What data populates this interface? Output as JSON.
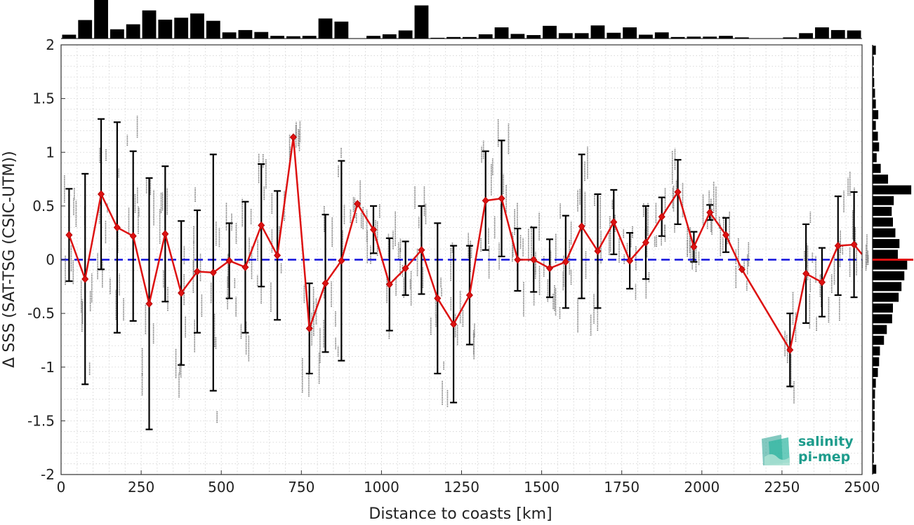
{
  "chart_data": {
    "type": "line",
    "xlabel": "Distance to coasts [km]",
    "ylabel": "Δ SSS (SAT-TSG (CSIC-UTM))",
    "xlim": [
      0,
      2500
    ],
    "ylim": [
      -2,
      2
    ],
    "xticks": [
      0,
      250,
      500,
      750,
      1000,
      1250,
      1500,
      1750,
      2000,
      2250,
      2500
    ],
    "yticks": [
      -2,
      -1.5,
      -1,
      -0.5,
      0,
      0.5,
      1,
      1.5,
      2
    ],
    "grid": true,
    "zero_line": {
      "y": 0,
      "style": "dashed",
      "color": "#1010dd"
    },
    "colors": {
      "mean_line": "#dd1111",
      "error_bars": "#000000",
      "scatter": "#777777",
      "histogram": "#000000"
    },
    "series": [
      {
        "x": [
          25,
          75,
          125,
          175,
          225,
          275,
          325,
          375,
          425,
          475,
          525,
          575,
          625,
          675,
          725,
          775,
          825,
          875,
          925,
          975,
          1025,
          1075,
          1125,
          1175,
          1225,
          1275,
          1325,
          1375,
          1425,
          1475,
          1525,
          1575,
          1625,
          1675,
          1725,
          1775,
          1825,
          1875,
          1925,
          1975,
          2025,
          2075,
          2125,
          2275,
          2325,
          2375,
          2425,
          2475,
          2500
        ],
        "mean": [
          0.23,
          -0.18,
          0.61,
          0.3,
          0.22,
          -0.41,
          0.24,
          -0.31,
          -0.11,
          -0.12,
          -0.01,
          -0.07,
          0.32,
          0.04,
          1.14,
          -0.64,
          -0.22,
          -0.01,
          0.52,
          0.28,
          -0.23,
          -0.08,
          0.09,
          -0.36,
          -0.6,
          -0.33,
          0.55,
          0.57,
          0.0,
          0.0,
          -0.08,
          -0.02,
          0.31,
          0.08,
          0.35,
          -0.01,
          0.16,
          0.4,
          0.63,
          0.12,
          0.44,
          0.23,
          -0.09,
          -0.84,
          -0.13,
          -0.21,
          0.13,
          0.14,
          0.05
        ],
        "error": [
          0.43,
          0.98,
          0.7,
          0.98,
          0.79,
          1.17,
          0.63,
          0.67,
          0.57,
          1.1,
          0.35,
          0.61,
          0.57,
          0.6,
          0.0,
          0.42,
          0.64,
          0.93,
          0.0,
          0.22,
          0.43,
          0.25,
          0.41,
          0.7,
          0.73,
          0.46,
          0.46,
          0.54,
          0.29,
          0.3,
          0.27,
          0.43,
          0.67,
          0.53,
          0.3,
          0.26,
          0.34,
          0.18,
          0.3,
          0.14,
          0.07,
          0.16,
          0.0,
          0.34,
          0.46,
          0.32,
          0.46,
          0.49,
          0.0
        ]
      }
    ],
    "top_histogram": {
      "bin_width": 50,
      "bin_centers": [
        25,
        75,
        125,
        175,
        225,
        275,
        325,
        375,
        425,
        475,
        525,
        575,
        625,
        675,
        725,
        775,
        825,
        875,
        925,
        975,
        1025,
        1075,
        1125,
        1175,
        1225,
        1275,
        1325,
        1375,
        1425,
        1475,
        1525,
        1575,
        1625,
        1675,
        1725,
        1775,
        1825,
        1875,
        1925,
        1975,
        2025,
        2075,
        2125,
        2175,
        2225,
        2275,
        2325,
        2375,
        2425,
        2475
      ],
      "values": [
        0.1,
        0.48,
        1.0,
        0.24,
        0.37,
        0.73,
        0.49,
        0.54,
        0.65,
        0.46,
        0.16,
        0.22,
        0.17,
        0.07,
        0.06,
        0.07,
        0.52,
        0.44,
        0.0,
        0.07,
        0.11,
        0.21,
        0.86,
        0.02,
        0.04,
        0.04,
        0.11,
        0.29,
        0.12,
        0.09,
        0.33,
        0.14,
        0.14,
        0.34,
        0.15,
        0.29,
        0.1,
        0.16,
        0.04,
        0.05,
        0.05,
        0.07,
        0.03,
        0.0,
        0.0,
        0.03,
        0.14,
        0.29,
        0.22,
        0.21
      ]
    },
    "right_histogram": {
      "bin_width": 0.1,
      "bin_centers": [
        1.95,
        1.85,
        1.75,
        1.65,
        1.55,
        1.45,
        1.35,
        1.25,
        1.15,
        1.05,
        0.95,
        0.85,
        0.75,
        0.65,
        0.55,
        0.45,
        0.35,
        0.25,
        0.15,
        0.05,
        -0.05,
        -0.15,
        -0.25,
        -0.35,
        -0.45,
        -0.55,
        -0.65,
        -0.75,
        -0.85,
        -0.95,
        -1.05,
        -1.15,
        -1.25,
        -1.35,
        -1.45,
        -1.55,
        -1.65,
        -1.75,
        -1.85,
        -1.95
      ],
      "values": [
        0.08,
        0.03,
        0.03,
        0.04,
        0.06,
        0.08,
        0.14,
        0.08,
        0.13,
        0.16,
        0.1,
        0.2,
        0.38,
        0.95,
        0.52,
        0.47,
        0.5,
        0.56,
        0.66,
        0.62,
        0.85,
        0.78,
        0.71,
        0.64,
        0.5,
        0.48,
        0.35,
        0.28,
        0.18,
        0.16,
        0.13,
        0.08,
        0.06,
        0.05,
        0.05,
        0.05,
        0.04,
        0.04,
        0.03,
        0.09
      ],
      "mean_marker_y": 0.0
    },
    "logo_text": [
      "salinity",
      "pi-mep"
    ]
  }
}
